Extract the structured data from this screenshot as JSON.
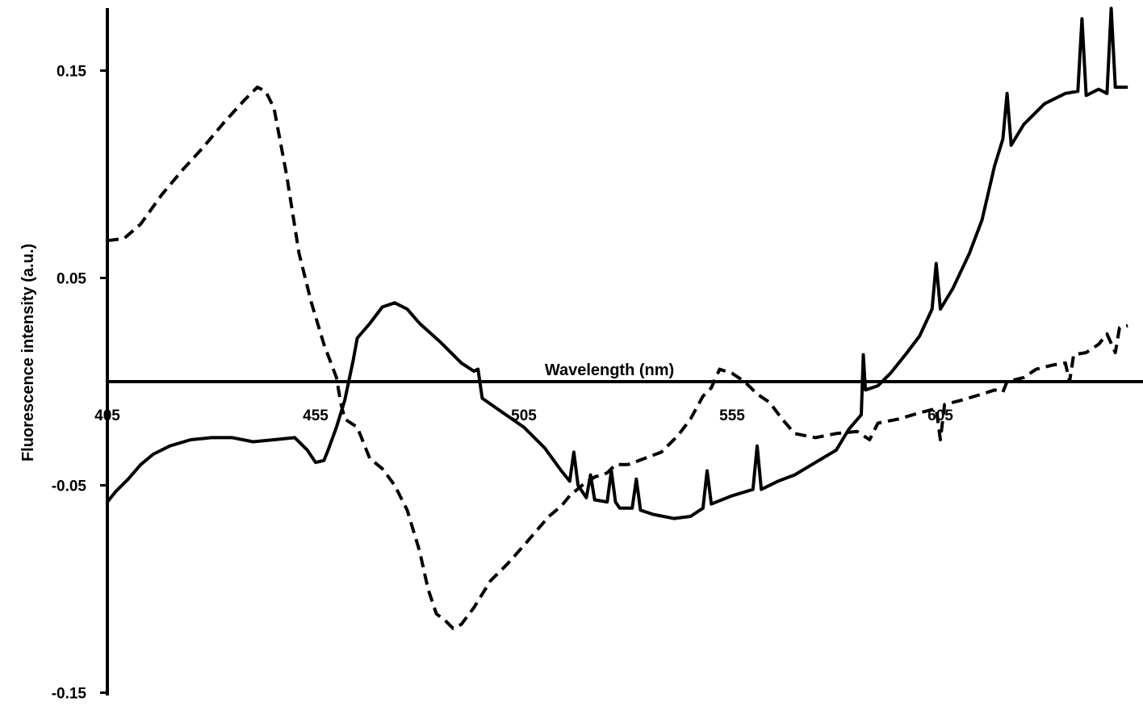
{
  "chart_data": {
    "type": "line",
    "title": "",
    "xlabel": "Wavelength (nm)",
    "ylabel": "Fluorescence intensity (a.u.)",
    "xlim": [
      405,
      650
    ],
    "ylim": [
      -0.15,
      0.18
    ],
    "x_ticks": [
      405,
      455,
      505,
      555,
      605
    ],
    "x_tick_labels": [
      "405",
      "455",
      "505",
      "555",
      "605"
    ],
    "y_ticks": [
      0.15,
      0.05,
      -0.05,
      -0.15
    ],
    "y_tick_labels": [
      "0.15",
      "0.05",
      "-0.05",
      "-0.15"
    ],
    "grid": false,
    "legend": "none",
    "series": [
      {
        "style": "solid",
        "color": "#000000",
        "points": [
          [
            405,
            -0.058
          ],
          [
            407,
            -0.053
          ],
          [
            410,
            -0.047
          ],
          [
            413,
            -0.04
          ],
          [
            416,
            -0.035
          ],
          [
            420,
            -0.031
          ],
          [
            425,
            -0.028
          ],
          [
            430,
            -0.027
          ],
          [
            435,
            -0.027
          ],
          [
            440,
            -0.029
          ],
          [
            445,
            -0.028
          ],
          [
            450,
            -0.027
          ],
          [
            453,
            -0.033
          ],
          [
            455,
            -0.039
          ],
          [
            457,
            -0.038
          ],
          [
            458,
            -0.033
          ],
          [
            460,
            -0.022
          ],
          [
            462,
            -0.009
          ],
          [
            464,
            0.01
          ],
          [
            465,
            0.021
          ],
          [
            468,
            0.028
          ],
          [
            471,
            0.036
          ],
          [
            474,
            0.038
          ],
          [
            477,
            0.035
          ],
          [
            480,
            0.028
          ],
          [
            485,
            0.019
          ],
          [
            490,
            0.009
          ],
          [
            493,
            0.005
          ],
          [
            494,
            0.006
          ],
          [
            495,
            -0.008
          ],
          [
            500,
            -0.015
          ],
          [
            505,
            -0.022
          ],
          [
            510,
            -0.032
          ],
          [
            514,
            -0.043
          ],
          [
            516,
            -0.048
          ],
          [
            517,
            -0.034
          ],
          [
            518,
            -0.05
          ],
          [
            520,
            -0.056
          ],
          [
            521,
            -0.045
          ],
          [
            522,
            -0.057
          ],
          [
            525,
            -0.058
          ],
          [
            526,
            -0.043
          ],
          [
            527,
            -0.058
          ],
          [
            528,
            -0.061
          ],
          [
            531,
            -0.061
          ],
          [
            532,
            -0.047
          ],
          [
            533,
            -0.062
          ],
          [
            536,
            -0.064
          ],
          [
            541,
            -0.066
          ],
          [
            545,
            -0.065
          ],
          [
            548,
            -0.061
          ],
          [
            549,
            -0.043
          ],
          [
            550,
            -0.059
          ],
          [
            555,
            -0.055
          ],
          [
            560,
            -0.052
          ],
          [
            561,
            -0.031
          ],
          [
            562,
            -0.052
          ],
          [
            566,
            -0.048
          ],
          [
            570,
            -0.045
          ],
          [
            575,
            -0.039
          ],
          [
            580,
            -0.033
          ],
          [
            583,
            -0.023
          ],
          [
            586,
            -0.016
          ],
          [
            586.5,
            0.013
          ],
          [
            587,
            -0.004
          ],
          [
            590,
            -0.002
          ],
          [
            593,
            0.004
          ],
          [
            597,
            0.014
          ],
          [
            600,
            0.022
          ],
          [
            603,
            0.035
          ],
          [
            604,
            0.057
          ],
          [
            605,
            0.035
          ],
          [
            608,
            0.045
          ],
          [
            612,
            0.062
          ],
          [
            615,
            0.078
          ],
          [
            618,
            0.104
          ],
          [
            620,
            0.117
          ],
          [
            621,
            0.139
          ],
          [
            622,
            0.114
          ],
          [
            625,
            0.124
          ],
          [
            630,
            0.134
          ],
          [
            635,
            0.139
          ],
          [
            638,
            0.14
          ],
          [
            639,
            0.175
          ],
          [
            640,
            0.138
          ],
          [
            643,
            0.141
          ],
          [
            645,
            0.139
          ],
          [
            646,
            0.18
          ],
          [
            647,
            0.142
          ],
          [
            650,
            0.142
          ]
        ]
      },
      {
        "style": "dashed",
        "color": "#000000",
        "points": [
          [
            405,
            0.068
          ],
          [
            409,
            0.069
          ],
          [
            413,
            0.076
          ],
          [
            418,
            0.09
          ],
          [
            423,
            0.102
          ],
          [
            428,
            0.113
          ],
          [
            433,
            0.125
          ],
          [
            438,
            0.136
          ],
          [
            441,
            0.142
          ],
          [
            443,
            0.14
          ],
          [
            445,
            0.132
          ],
          [
            448,
            0.1
          ],
          [
            451,
            0.062
          ],
          [
            454,
            0.038
          ],
          [
            457,
            0.018
          ],
          [
            460,
            0.002
          ],
          [
            461,
            -0.01
          ],
          [
            462,
            -0.018
          ],
          [
            465,
            -0.022
          ],
          [
            468,
            -0.037
          ],
          [
            471,
            -0.042
          ],
          [
            474,
            -0.05
          ],
          [
            477,
            -0.062
          ],
          [
            480,
            -0.082
          ],
          [
            482,
            -0.1
          ],
          [
            484,
            -0.112
          ],
          [
            486,
            -0.115
          ],
          [
            488,
            -0.119
          ],
          [
            490,
            -0.117
          ],
          [
            493,
            -0.109
          ],
          [
            497,
            -0.096
          ],
          [
            501,
            -0.088
          ],
          [
            505,
            -0.079
          ],
          [
            508,
            -0.072
          ],
          [
            511,
            -0.065
          ],
          [
            514,
            -0.06
          ],
          [
            516,
            -0.055
          ],
          [
            519,
            -0.05
          ],
          [
            522,
            -0.046
          ],
          [
            525,
            -0.044
          ],
          [
            527,
            -0.04
          ],
          [
            530,
            -0.04
          ],
          [
            534,
            -0.037
          ],
          [
            538,
            -0.034
          ],
          [
            542,
            -0.026
          ],
          [
            545,
            -0.018
          ],
          [
            548,
            -0.007
          ],
          [
            550,
            -0.003
          ],
          [
            552,
            0.006
          ],
          [
            555,
            0.004
          ],
          [
            558,
            0.0
          ],
          [
            561,
            -0.006
          ],
          [
            564,
            -0.01
          ],
          [
            567,
            -0.018
          ],
          [
            570,
            -0.025
          ],
          [
            575,
            -0.027
          ],
          [
            580,
            -0.025
          ],
          [
            585,
            -0.024
          ],
          [
            588,
            -0.028
          ],
          [
            590,
            -0.02
          ],
          [
            595,
            -0.018
          ],
          [
            600,
            -0.015
          ],
          [
            604,
            -0.013
          ],
          [
            605,
            -0.028
          ],
          [
            606,
            -0.011
          ],
          [
            610,
            -0.009
          ],
          [
            615,
            -0.006
          ],
          [
            618,
            -0.004
          ],
          [
            620,
            -0.005
          ],
          [
            621,
            0.0
          ],
          [
            625,
            0.002
          ],
          [
            628,
            0.006
          ],
          [
            632,
            0.008
          ],
          [
            635,
            0.009
          ],
          [
            636,
            0.0
          ],
          [
            637,
            0.013
          ],
          [
            640,
            0.014
          ],
          [
            643,
            0.018
          ],
          [
            645,
            0.023
          ],
          [
            647,
            0.014
          ],
          [
            648,
            0.026
          ],
          [
            650,
            0.027
          ]
        ]
      }
    ]
  }
}
